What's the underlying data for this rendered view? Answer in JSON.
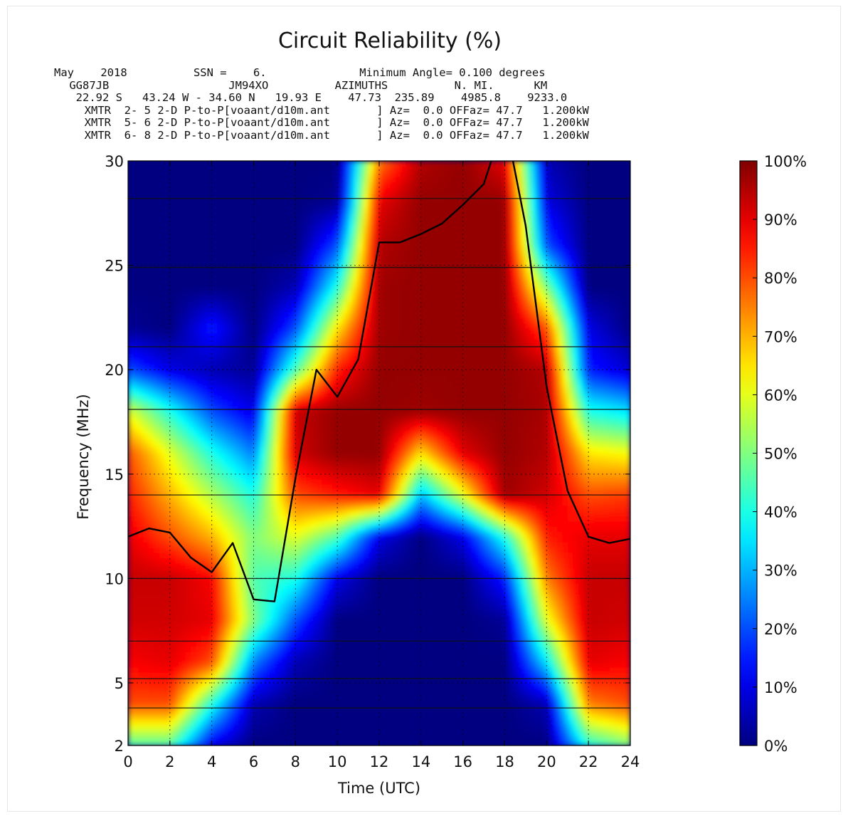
{
  "header_lines": [
    "May    2018          SSN =    6.              Minimum Angle= 0.100 degrees",
    " GG87JB                  JM94XO          AZIMUTHS          N. MI.      KM",
    "  22.92 S   43.24 W - 34.60 N   19.93 E    47.73  235.89    4985.8    9233.0",
    "  XMTR  2- 5 2-D P-to-P[voaant/d10m.ant       ] Az=  0.0 OFFaz= 47.7   1.200kW",
    "  XMTR  5- 6 2-D P-to-P[voaant/d10m.ant       ] Az=  0.0 OFFaz= 47.7   1.200kW",
    "  XMTR  6- 8 2-D P-to-P[voaant/d10m.ant       ] Az=  0.0 OFFaz= 47.7   1.200kW"
  ],
  "chart_data": {
    "type": "heatmap",
    "title": "Circuit Reliability (%)",
    "xlabel": "Time (UTC)",
    "ylabel": "Frequency (MHz)",
    "xlim": [
      0,
      24
    ],
    "ylim": [
      2,
      30
    ],
    "xticks": [
      "0",
      "2",
      "4",
      "6",
      "8",
      "10",
      "12",
      "14",
      "16",
      "18",
      "20",
      "22",
      "24"
    ],
    "yticks": [
      "2",
      "5",
      "10",
      "15",
      "20",
      "25",
      "30"
    ],
    "colorbar": {
      "range": [
        0,
        100
      ],
      "ticks": [
        "0%",
        "10%",
        "20%",
        "30%",
        "40%",
        "50%",
        "60%",
        "70%",
        "80%",
        "90%",
        "100%"
      ],
      "colormap": "jet"
    },
    "grid": true,
    "horizontal_frequency_lines_mhz": [
      3.8,
      5.2,
      7.0,
      10.0,
      14.0,
      18.1,
      21.1,
      24.9,
      28.2
    ],
    "muf_line": {
      "x": [
        0,
        1,
        2,
        3,
        4,
        5,
        6,
        7,
        8,
        9,
        10,
        11,
        12,
        13,
        14,
        15,
        16,
        17,
        18,
        19,
        20,
        21,
        22,
        23,
        24
      ],
      "y": [
        12.0,
        12.4,
        12.2,
        11.0,
        10.3,
        11.7,
        9.0,
        8.9,
        14.8,
        20.0,
        18.7,
        20.5,
        26.1,
        26.1,
        26.5,
        27.0,
        27.9,
        28.9,
        32.0,
        26.9,
        19.2,
        14.2,
        12.0,
        11.7,
        11.9
      ]
    },
    "reliability_grid_percent": {
      "x": [
        0,
        2,
        4,
        6,
        8,
        10,
        12,
        14,
        16,
        18,
        20,
        22,
        24
      ],
      "y": [
        2,
        4,
        6,
        8,
        10,
        12,
        14,
        16,
        18,
        20,
        22,
        24,
        26,
        28,
        30
      ],
      "rows": [
        [
          45,
          45,
          10,
          0,
          0,
          0,
          0,
          0,
          0,
          0,
          0,
          40,
          50
        ],
        [
          80,
          80,
          40,
          5,
          0,
          0,
          0,
          0,
          0,
          0,
          5,
          75,
          80
        ],
        [
          88,
          90,
          80,
          25,
          5,
          0,
          0,
          0,
          0,
          0,
          35,
          90,
          88
        ],
        [
          92,
          92,
          90,
          50,
          20,
          0,
          0,
          0,
          0,
          2,
          60,
          93,
          92
        ],
        [
          93,
          93,
          88,
          45,
          40,
          10,
          0,
          0,
          0,
          15,
          75,
          93,
          93
        ],
        [
          90,
          80,
          70,
          50,
          60,
          45,
          10,
          0,
          10,
          40,
          85,
          90,
          90
        ],
        [
          85,
          70,
          55,
          40,
          80,
          85,
          90,
          30,
          60,
          97,
          92,
          80,
          82
        ],
        [
          80,
          60,
          40,
          25,
          92,
          98,
          98,
          65,
          90,
          98,
          95,
          65,
          62
        ],
        [
          60,
          40,
          20,
          10,
          93,
          98,
          98,
          97,
          98,
          98,
          96,
          40,
          35
        ],
        [
          20,
          10,
          5,
          2,
          45,
          85,
          98,
          98,
          98,
          98,
          95,
          15,
          8
        ],
        [
          2,
          0,
          15,
          0,
          20,
          65,
          97,
          98,
          98,
          98,
          80,
          10,
          0
        ],
        [
          0,
          0,
          0,
          0,
          5,
          40,
          97,
          98,
          98,
          98,
          50,
          0,
          0
        ],
        [
          0,
          0,
          0,
          0,
          0,
          20,
          95,
          98,
          98,
          98,
          20,
          0,
          0
        ],
        [
          0,
          0,
          0,
          0,
          0,
          2,
          90,
          98,
          98,
          98,
          10,
          0,
          0
        ],
        [
          0,
          0,
          0,
          0,
          0,
          0,
          75,
          95,
          98,
          90,
          5,
          0,
          0
        ]
      ]
    }
  }
}
